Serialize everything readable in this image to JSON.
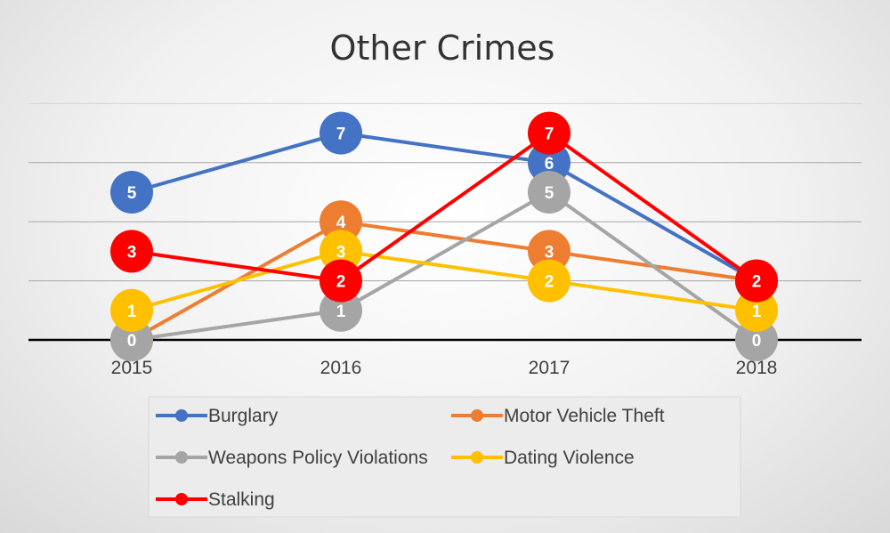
{
  "chart_data": {
    "type": "line",
    "title": "Other Crimes",
    "xlabel": "",
    "ylabel": "",
    "categories": [
      "2015",
      "2016",
      "2017",
      "2018"
    ],
    "ylim": [
      0,
      7
    ],
    "grid": true,
    "legend_position": "bottom",
    "data_labels": true,
    "series": [
      {
        "name": "Burglary",
        "color": "#4472C4",
        "values": [
          5,
          7,
          6,
          2
        ]
      },
      {
        "name": "Motor Vehicle Theft",
        "color": "#ED7D31",
        "values": [
          0,
          4,
          3,
          2
        ]
      },
      {
        "name": "Weapons Policy Violations",
        "color": "#A5A5A5",
        "values": [
          0,
          1,
          5,
          0
        ]
      },
      {
        "name": "Dating Violence",
        "color": "#FFC000",
        "values": [
          1,
          3,
          2,
          1
        ]
      },
      {
        "name": "Stalking",
        "color": "#FF0000",
        "values": [
          3,
          2,
          7,
          2
        ]
      }
    ]
  }
}
